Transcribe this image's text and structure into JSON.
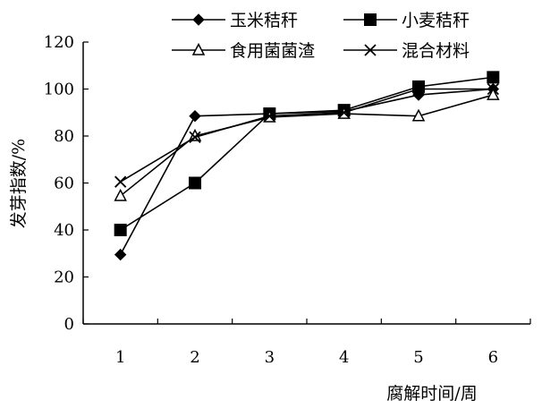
{
  "chart_data": {
    "type": "line",
    "xlabel": "腐解时间/周",
    "ylabel": "发芽指数/%",
    "x": [
      1,
      2,
      3,
      4,
      5,
      6
    ],
    "ylim": [
      0,
      120
    ],
    "yticks": [
      0,
      20,
      40,
      60,
      80,
      100,
      120
    ],
    "grid": false,
    "legend": "top",
    "series": [
      {
        "name": "玉米秸秆",
        "marker": "diamond",
        "values": [
          29.5,
          88.5,
          89.5,
          90.5,
          97.5,
          100
        ]
      },
      {
        "name": "小麦秸秆",
        "marker": "square",
        "values": [
          40,
          60,
          89.5,
          91,
          101,
          105
        ]
      },
      {
        "name": "食用菌菌渣",
        "marker": "triangle",
        "values": [
          54.5,
          80,
          88,
          89.5,
          88.5,
          97.5
        ]
      },
      {
        "name": "混合材料",
        "marker": "x",
        "values": [
          60.5,
          79.5,
          88.5,
          90,
          100,
          100
        ]
      }
    ],
    "line_color": "#000000"
  }
}
